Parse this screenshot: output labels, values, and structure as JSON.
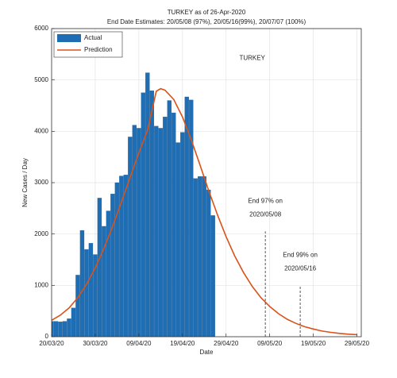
{
  "chart_data": {
    "type": "bar-line",
    "title": "TURKEY as of 26-Apr-2020",
    "subtitle": "End Date Estimates: 20/05/08 (97%), 20/05/16(99%), 20/07/07 (100%)",
    "x_label": "Date",
    "y_label": "New Cases / Day",
    "xlim": [
      0,
      71
    ],
    "ylim": [
      0,
      6000
    ],
    "xticks": [
      {
        "value": 0,
        "label": "20/03/20"
      },
      {
        "value": 10,
        "label": "30/03/20"
      },
      {
        "value": 20,
        "label": "09/04/20"
      },
      {
        "value": 30,
        "label": "19/04/20"
      },
      {
        "value": 40,
        "label": "29/04/20"
      },
      {
        "value": 50,
        "label": "09/05/20"
      },
      {
        "value": 60,
        "label": "19/05/20"
      },
      {
        "value": 70,
        "label": "29/05/20"
      }
    ],
    "yticks": [
      0,
      1000,
      2000,
      3000,
      4000,
      5000,
      6000
    ],
    "grid": true,
    "legend": "upper left",
    "series": [
      {
        "name": "Actual",
        "type": "bar",
        "color": "#1f6eb4",
        "x": [
          0,
          1,
          2,
          3,
          4,
          5,
          6,
          7,
          8,
          9,
          10,
          11,
          12,
          13,
          14,
          15,
          16,
          17,
          18,
          19,
          20,
          21,
          22,
          23,
          24,
          25,
          26,
          27,
          28,
          29,
          30,
          31,
          32,
          33,
          34,
          35,
          36,
          37
        ],
        "values": [
          300,
          300,
          290,
          300,
          350,
          560,
          1200,
          2070,
          1700,
          1820,
          1600,
          2700,
          2150,
          2450,
          2780,
          3000,
          3130,
          3150,
          3890,
          4120,
          4060,
          4750,
          5140,
          4790,
          4100,
          4060,
          4280,
          4600,
          4360,
          3780,
          3980,
          4670,
          4610,
          3080,
          3120,
          3120,
          2860,
          2360
        ]
      },
      {
        "name": "Prediction",
        "type": "line",
        "color": "#d95319",
        "x": [
          0,
          2,
          4,
          6,
          8,
          10,
          12,
          14,
          16,
          18,
          20,
          22,
          24,
          25,
          26,
          28,
          30,
          32,
          34,
          36,
          38,
          40,
          42,
          44,
          46,
          48,
          50,
          52,
          54,
          56,
          58,
          60,
          62,
          64,
          66,
          68,
          70
        ],
        "values": [
          320,
          420,
          560,
          760,
          1020,
          1340,
          1720,
          2150,
          2620,
          3100,
          3580,
          4020,
          4780,
          4830,
          4800,
          4620,
          4280,
          3840,
          3350,
          2850,
          2380,
          1950,
          1570,
          1250,
          980,
          760,
          590,
          450,
          340,
          260,
          195,
          150,
          110,
          85,
          65,
          50,
          40
        ]
      }
    ],
    "annotations": [
      {
        "text": "TURKEY",
        "x": 46,
        "y": 5420
      },
      {
        "text": [
          "End 97% on",
          "2020/05/08"
        ],
        "x": 49,
        "y": 2050
      },
      {
        "text": [
          "End 99% on",
          "2020/05/16"
        ],
        "x": 57,
        "y": 1000
      }
    ]
  }
}
